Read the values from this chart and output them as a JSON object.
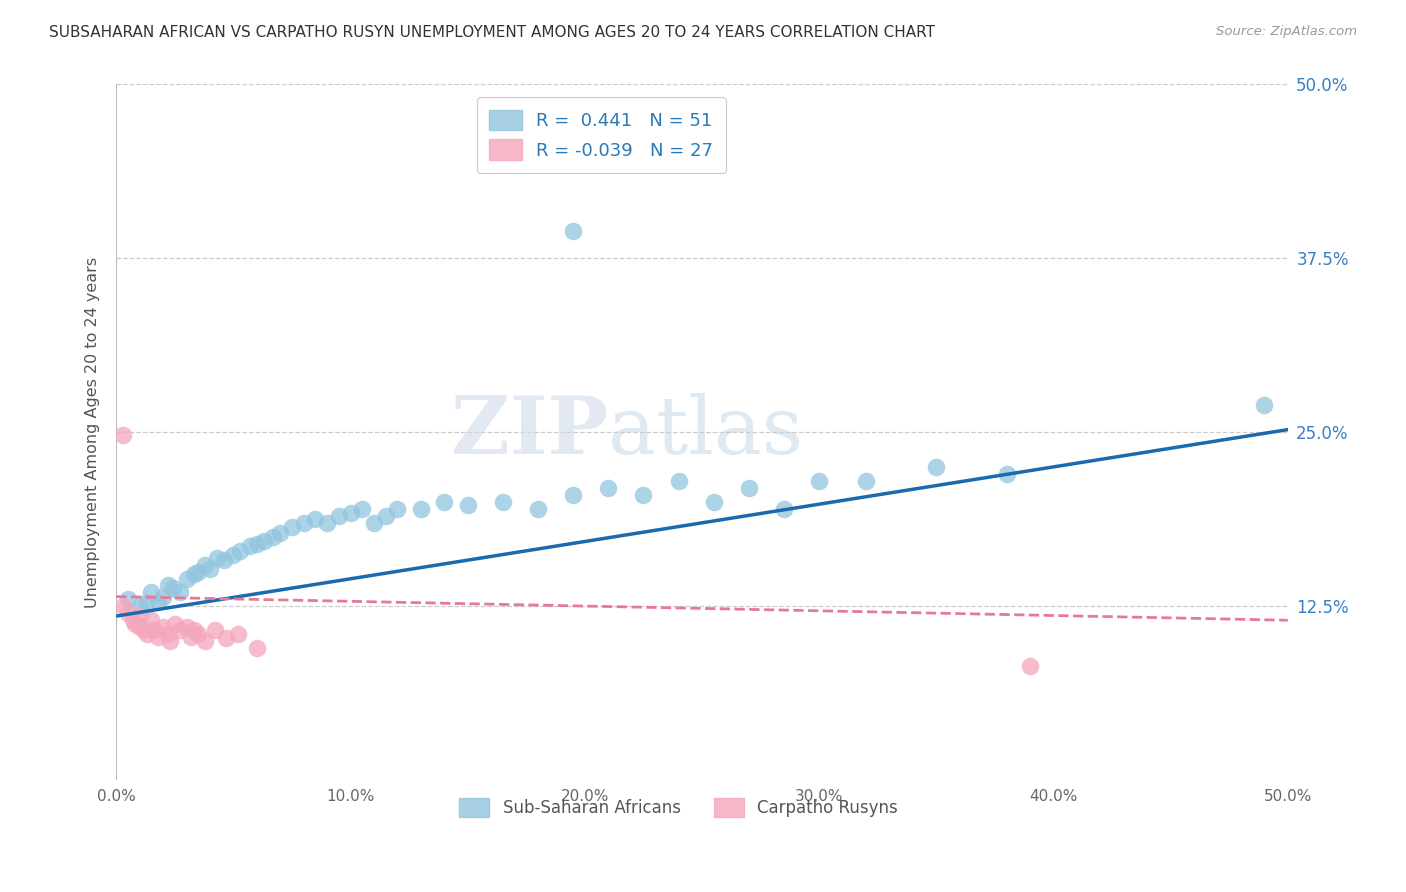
{
  "title": "SUBSAHARAN AFRICAN VS CARPATHO RUSYN UNEMPLOYMENT AMONG AGES 20 TO 24 YEARS CORRELATION CHART",
  "source": "Source: ZipAtlas.com",
  "ylabel": "Unemployment Among Ages 20 to 24 years",
  "xlim": [
    0.0,
    0.5
  ],
  "ylim": [
    0.0,
    0.5
  ],
  "xticks": [
    0.0,
    0.1,
    0.2,
    0.3,
    0.4,
    0.5
  ],
  "yticks": [
    0.125,
    0.25,
    0.375,
    0.5
  ],
  "ytick_labels": [
    "12.5%",
    "25.0%",
    "37.5%",
    "50.0%"
  ],
  "xtick_labels": [
    "0.0%",
    "10.0%",
    "20.0%",
    "30.0%",
    "40.0%",
    "50.0%"
  ],
  "blue_color": "#92c5de",
  "pink_color": "#f4a6bc",
  "blue_line_color": "#1a6aad",
  "pink_line_color": "#e8789a",
  "legend_label_blue": "Sub-Saharan Africans",
  "legend_label_pink": "Carpatho Rusyns",
  "R_blue": 0.441,
  "N_blue": 51,
  "R_pink": -0.039,
  "N_pink": 27,
  "watermark_zip": "ZIP",
  "watermark_atlas": "atlas",
  "blue_points_x": [
    0.005,
    0.01,
    0.013,
    0.015,
    0.018,
    0.02,
    0.022,
    0.024,
    0.027,
    0.03,
    0.033,
    0.035,
    0.038,
    0.04,
    0.043,
    0.046,
    0.05,
    0.053,
    0.057,
    0.06,
    0.063,
    0.067,
    0.07,
    0.075,
    0.08,
    0.085,
    0.09,
    0.095,
    0.1,
    0.105,
    0.11,
    0.115,
    0.12,
    0.13,
    0.14,
    0.15,
    0.165,
    0.18,
    0.195,
    0.21,
    0.225,
    0.24,
    0.255,
    0.27,
    0.285,
    0.3,
    0.32,
    0.35,
    0.38,
    0.49,
    0.195
  ],
  "blue_points_y": [
    0.13,
    0.125,
    0.128,
    0.135,
    0.128,
    0.132,
    0.14,
    0.138,
    0.135,
    0.145,
    0.148,
    0.15,
    0.155,
    0.152,
    0.16,
    0.158,
    0.162,
    0.165,
    0.168,
    0.17,
    0.172,
    0.175,
    0.178,
    0.182,
    0.185,
    0.188,
    0.185,
    0.19,
    0.192,
    0.195,
    0.185,
    0.19,
    0.195,
    0.195,
    0.2,
    0.198,
    0.2,
    0.195,
    0.205,
    0.21,
    0.205,
    0.215,
    0.2,
    0.21,
    0.195,
    0.215,
    0.215,
    0.225,
    0.22,
    0.27,
    0.395
  ],
  "pink_points_x": [
    0.003,
    0.005,
    0.007,
    0.008,
    0.01,
    0.01,
    0.012,
    0.013,
    0.015,
    0.016,
    0.018,
    0.02,
    0.022,
    0.023,
    0.025,
    0.027,
    0.03,
    0.032,
    0.033,
    0.035,
    0.038,
    0.042,
    0.047,
    0.052,
    0.06,
    0.39,
    0.003
  ],
  "pink_points_y": [
    0.125,
    0.12,
    0.115,
    0.112,
    0.118,
    0.11,
    0.108,
    0.105,
    0.115,
    0.108,
    0.103,
    0.11,
    0.105,
    0.1,
    0.112,
    0.108,
    0.11,
    0.103,
    0.108,
    0.105,
    0.1,
    0.108,
    0.102,
    0.105,
    0.095,
    0.082,
    0.248
  ],
  "blue_line_x": [
    0.0,
    0.5
  ],
  "blue_line_y": [
    0.118,
    0.252
  ],
  "pink_line_x": [
    0.0,
    0.5
  ],
  "pink_line_y": [
    0.132,
    0.115
  ]
}
